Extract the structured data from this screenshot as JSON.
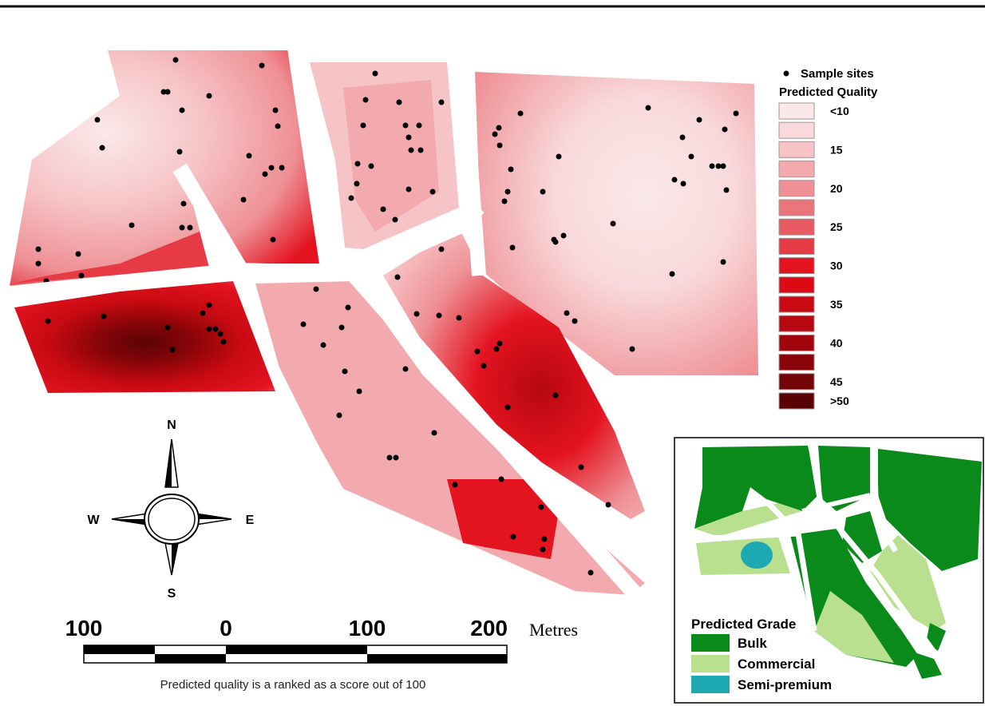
{
  "legend": {
    "sample_sites_label": "Sample sites",
    "quality_title": "Predicted Quality",
    "classes": [
      {
        "label": "<10",
        "color": "#fbe9ea"
      },
      {
        "label": "",
        "color": "#f9d9db"
      },
      {
        "label": "15",
        "color": "#f6c3c6"
      },
      {
        "label": "",
        "color": "#f2aaae"
      },
      {
        "label": "20",
        "color": "#ee9095"
      },
      {
        "label": "",
        "color": "#ea767c"
      },
      {
        "label": "25",
        "color": "#e85a62"
      },
      {
        "label": "",
        "color": "#e63a44"
      },
      {
        "label": "30",
        "color": "#e41320"
      },
      {
        "label": "",
        "color": "#dc0a14"
      },
      {
        "label": "35",
        "color": "#c90a12"
      },
      {
        "label": "",
        "color": "#b60810"
      },
      {
        "label": "40",
        "color": "#a0060c"
      },
      {
        "label": "",
        "color": "#8a0509"
      },
      {
        "label": "45",
        "color": "#730407"
      },
      {
        "label": ">50",
        "color": "#5a0305"
      }
    ]
  },
  "compass": {
    "n": "N",
    "s": "S",
    "e": "E",
    "w": "W"
  },
  "scale_bar": {
    "labels": [
      "100",
      "0",
      "100",
      "200"
    ],
    "unit": "Metres",
    "note": "Predicted quality is a ranked as a score out of 100"
  },
  "inset": {
    "title": "Predicted Grade",
    "classes": [
      {
        "label": "Bulk",
        "color": "#0b8a1c"
      },
      {
        "label": "Commercial",
        "color": "#b9e08e"
      },
      {
        "label": "Semi-premium",
        "color": "#1ea9b2"
      }
    ]
  }
}
